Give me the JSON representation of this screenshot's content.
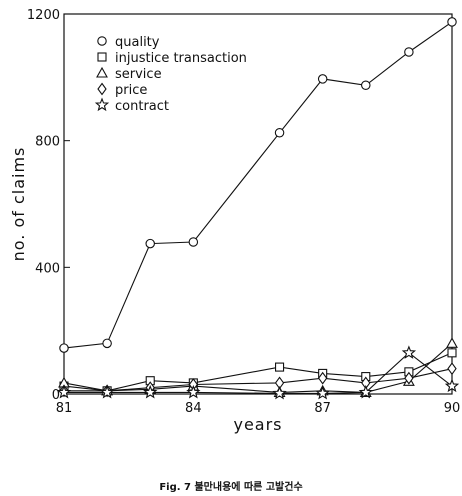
{
  "caption": "Fig. 7  불만내용에 따른 고발건수",
  "chart_data": {
    "type": "line",
    "xlabel": "years",
    "ylabel": "no. of claims",
    "xlim": [
      81,
      90
    ],
    "ylim": [
      0,
      1200
    ],
    "x_ticks": [
      81,
      84,
      87,
      90
    ],
    "y_ticks": [
      0,
      400,
      800,
      1200
    ],
    "x_tick_labels": [
      "81",
      "84",
      "87",
      "90"
    ],
    "y_tick_labels": [
      "0",
      "400",
      "800",
      "1200"
    ],
    "x": [
      81,
      82,
      83,
      84,
      85,
      86,
      87,
      88,
      89,
      90
    ],
    "legend_position": "top-left",
    "series": [
      {
        "name": "quality",
        "marker": "circle",
        "values": [
          145,
          160,
          475,
          480,
          null,
          825,
          995,
          975,
          1080,
          1175
        ]
      },
      {
        "name": "injustice  transaction",
        "marker": "square",
        "values": [
          25,
          10,
          42,
          35,
          null,
          85,
          65,
          55,
          70,
          130
        ]
      },
      {
        "name": "service",
        "marker": "triangle",
        "values": [
          35,
          10,
          15,
          25,
          null,
          5,
          10,
          5,
          40,
          160
        ]
      },
      {
        "name": "price",
        "marker": "diamond",
        "values": [
          10,
          10,
          20,
          30,
          null,
          35,
          50,
          35,
          50,
          80
        ]
      },
      {
        "name": "contract",
        "marker": "star",
        "values": [
          5,
          5,
          5,
          5,
          null,
          2,
          2,
          5,
          130,
          25
        ]
      }
    ]
  }
}
